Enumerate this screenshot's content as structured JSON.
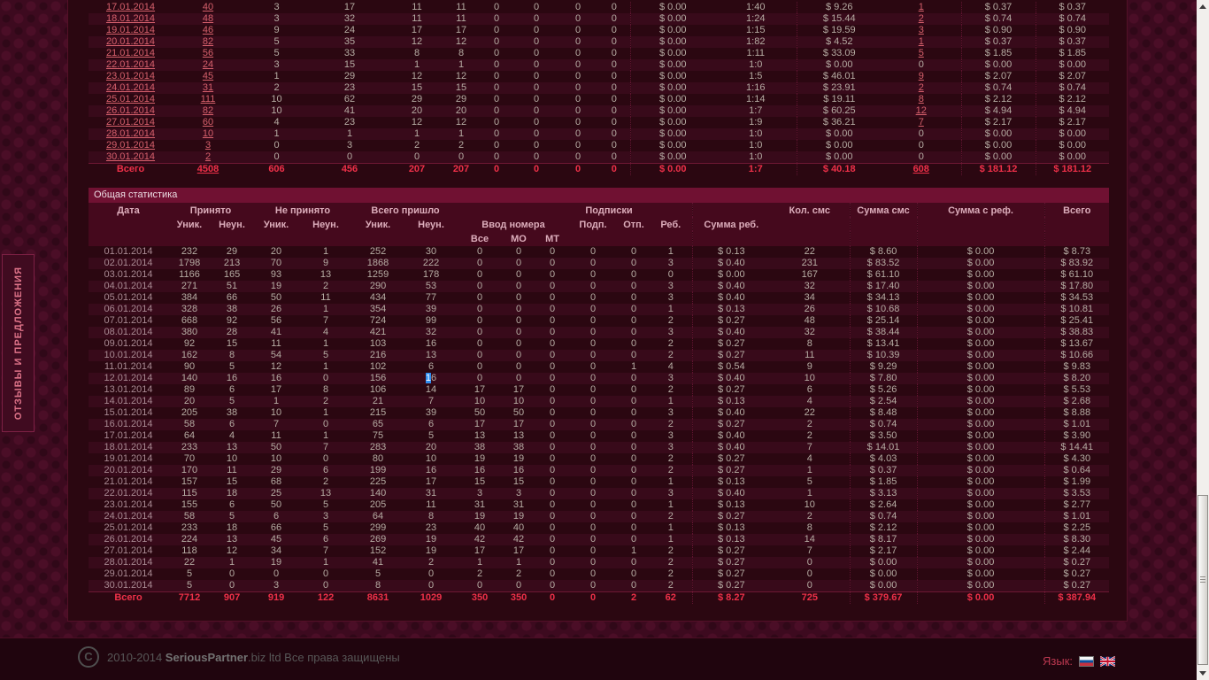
{
  "page": {
    "feedback_tab": "ОТЗЫВЫ И ПРЕДЛОЖЕНИЯ"
  },
  "colors": {
    "accent_total_red": "#ee3049",
    "link_red": "#d6606c",
    "title_bar_maroon": "#701132",
    "selection_blue": "#2e8def"
  },
  "daily_stats_table": {
    "rows": [
      [
        "17.01.2014",
        "40",
        "3",
        "17",
        "11",
        "11",
        "0",
        "0",
        "0",
        "0",
        "$ 0.00",
        "1:40",
        "$ 9.26",
        "1",
        "$ 0.37",
        "$ 0.37"
      ],
      [
        "18.01.2014",
        "48",
        "3",
        "32",
        "11",
        "11",
        "0",
        "0",
        "0",
        "0",
        "$ 0.00",
        "1:24",
        "$ 15.44",
        "2",
        "$ 0.74",
        "$ 0.74"
      ],
      [
        "19.01.2014",
        "46",
        "9",
        "24",
        "17",
        "17",
        "0",
        "0",
        "0",
        "0",
        "$ 0.00",
        "1:15",
        "$ 19.59",
        "3",
        "$ 0.90",
        "$ 0.90"
      ],
      [
        "20.01.2014",
        "82",
        "5",
        "35",
        "12",
        "12",
        "0",
        "0",
        "0",
        "0",
        "$ 0.00",
        "1:82",
        "$ 4.52",
        "1",
        "$ 0.37",
        "$ 0.37"
      ],
      [
        "21.01.2014",
        "56",
        "5",
        "33",
        "8",
        "8",
        "0",
        "0",
        "0",
        "0",
        "$ 0.00",
        "1:11",
        "$ 33.09",
        "5",
        "$ 1.85",
        "$ 1.85"
      ],
      [
        "22.01.2014",
        "24",
        "3",
        "15",
        "1",
        "1",
        "0",
        "0",
        "0",
        "0",
        "$ 0.00",
        "1:0",
        "$ 0.00",
        "0",
        "$ 0.00",
        "$ 0.00"
      ],
      [
        "23.01.2014",
        "45",
        "1",
        "29",
        "12",
        "12",
        "0",
        "0",
        "0",
        "0",
        "$ 0.00",
        "1:5",
        "$ 46.01",
        "9",
        "$ 2.07",
        "$ 2.07"
      ],
      [
        "24.01.2014",
        "31",
        "2",
        "23",
        "15",
        "15",
        "0",
        "0",
        "0",
        "0",
        "$ 0.00",
        "1:16",
        "$ 23.91",
        "2",
        "$ 0.74",
        "$ 0.74"
      ],
      [
        "25.01.2014",
        "111",
        "10",
        "62",
        "29",
        "29",
        "0",
        "0",
        "0",
        "0",
        "$ 0.00",
        "1:14",
        "$ 19.11",
        "8",
        "$ 2.12",
        "$ 2.12"
      ],
      [
        "26.01.2014",
        "82",
        "10",
        "41",
        "20",
        "20",
        "0",
        "0",
        "0",
        "0",
        "$ 0.00",
        "1:7",
        "$ 60.25",
        "12",
        "$ 4.94",
        "$ 4.94"
      ],
      [
        "27.01.2014",
        "60",
        "4",
        "23",
        "12",
        "12",
        "0",
        "0",
        "0",
        "0",
        "$ 0.00",
        "1:9",
        "$ 36.21",
        "7",
        "$ 2.17",
        "$ 2.17"
      ],
      [
        "28.01.2014",
        "10",
        "1",
        "1",
        "1",
        "1",
        "0",
        "0",
        "0",
        "0",
        "$ 0.00",
        "1:0",
        "$ 0.00",
        "0",
        "$ 0.00",
        "$ 0.00"
      ],
      [
        "29.01.2014",
        "3",
        "0",
        "3",
        "2",
        "2",
        "0",
        "0",
        "0",
        "0",
        "$ 0.00",
        "1:0",
        "$ 0.00",
        "0",
        "$ 0.00",
        "$ 0.00"
      ],
      [
        "30.01.2014",
        "2",
        "0",
        "0",
        "0",
        "0",
        "0",
        "0",
        "0",
        "0",
        "$ 0.00",
        "1:0",
        "$ 0.00",
        "0",
        "$ 0.00",
        "$ 0.00"
      ]
    ],
    "total_row": [
      "Всего",
      "4508",
      "606",
      "456",
      "207",
      "207",
      "0",
      "0",
      "0",
      "0",
      "$ 0.00",
      "1:7",
      "$ 40.18",
      "608",
      "$ 181.12",
      "$ 181.12"
    ]
  },
  "general_stats_table": {
    "title": "Общая статистика",
    "header": {
      "date": "Дата",
      "accepted": "Принято",
      "not_accepted": "Не принято",
      "total_received": "Всего пришло",
      "unique": "Уник.",
      "non_unique": "Неун.",
      "number_input": "Ввод номера",
      "all": "Все",
      "mo": "МО",
      "mt": "МТ",
      "subscriptions": "Подписки",
      "sub": "Подп.",
      "unsub": "Отп.",
      "rebill": "Реб.",
      "rebill_sum": "Сумма реб.",
      "sms_count": "Кол. смс",
      "sms_sum": "Сумма смс",
      "ref_sum": "Сумма с реф.",
      "total": "Всего"
    },
    "rows": [
      [
        "01.01.2014",
        "232",
        "29",
        "20",
        "1",
        "252",
        "30",
        "0",
        "0",
        "0",
        "0",
        "0",
        "1",
        "$ 0.13",
        "22",
        "$ 8.60",
        "$ 0.00",
        "$ 8.73"
      ],
      [
        "02.01.2014",
        "1798",
        "213",
        "70",
        "9",
        "1868",
        "222",
        "0",
        "0",
        "0",
        "0",
        "0",
        "3",
        "$ 0.40",
        "231",
        "$ 83.52",
        "$ 0.00",
        "$ 83.92"
      ],
      [
        "03.01.2014",
        "1166",
        "165",
        "93",
        "13",
        "1259",
        "178",
        "0",
        "0",
        "0",
        "0",
        "0",
        "0",
        "$ 0.00",
        "167",
        "$ 61.10",
        "$ 0.00",
        "$ 61.10"
      ],
      [
        "04.01.2014",
        "271",
        "51",
        "19",
        "2",
        "290",
        "53",
        "0",
        "0",
        "0",
        "0",
        "0",
        "3",
        "$ 0.40",
        "32",
        "$ 17.40",
        "$ 0.00",
        "$ 17.80"
      ],
      [
        "05.01.2014",
        "384",
        "66",
        "50",
        "11",
        "434",
        "77",
        "0",
        "0",
        "0",
        "0",
        "0",
        "3",
        "$ 0.40",
        "34",
        "$ 34.13",
        "$ 0.00",
        "$ 34.53"
      ],
      [
        "06.01.2014",
        "328",
        "38",
        "26",
        "1",
        "354",
        "39",
        "0",
        "0",
        "0",
        "0",
        "0",
        "1",
        "$ 0.13",
        "26",
        "$ 10.68",
        "$ 0.00",
        "$ 10.81"
      ],
      [
        "07.01.2014",
        "668",
        "92",
        "56",
        "7",
        "724",
        "99",
        "0",
        "0",
        "0",
        "0",
        "0",
        "2",
        "$ 0.27",
        "48",
        "$ 25.14",
        "$ 0.00",
        "$ 25.41"
      ],
      [
        "08.01.2014",
        "380",
        "28",
        "41",
        "4",
        "421",
        "32",
        "0",
        "0",
        "0",
        "0",
        "0",
        "3",
        "$ 0.40",
        "32",
        "$ 38.44",
        "$ 0.00",
        "$ 38.83"
      ],
      [
        "09.01.2014",
        "92",
        "15",
        "11",
        "1",
        "103",
        "16",
        "0",
        "0",
        "0",
        "0",
        "0",
        "2",
        "$ 0.27",
        "8",
        "$ 13.41",
        "$ 0.00",
        "$ 13.67"
      ],
      [
        "10.01.2014",
        "162",
        "8",
        "54",
        "5",
        "216",
        "13",
        "0",
        "0",
        "0",
        "0",
        "0",
        "2",
        "$ 0.27",
        "11",
        "$ 10.39",
        "$ 0.00",
        "$ 10.66"
      ],
      [
        "11.01.2014",
        "90",
        "5",
        "12",
        "1",
        "102",
        "6",
        "0",
        "0",
        "0",
        "0",
        "1",
        "4",
        "$ 0.54",
        "9",
        "$ 9.29",
        "$ 0.00",
        "$ 9.83"
      ],
      [
        "12.01.2014",
        "140",
        "16",
        "16",
        "0",
        "156",
        "16",
        "0",
        "0",
        "0",
        "0",
        "0",
        "3",
        "$ 0.40",
        "10",
        "$ 7.80",
        "$ 0.00",
        "$ 8.20"
      ],
      [
        "13.01.2014",
        "89",
        "6",
        "17",
        "8",
        "106",
        "14",
        "17",
        "17",
        "0",
        "0",
        "0",
        "2",
        "$ 0.27",
        "6",
        "$ 5.26",
        "$ 0.00",
        "$ 5.53"
      ],
      [
        "14.01.2014",
        "20",
        "5",
        "1",
        "2",
        "21",
        "7",
        "10",
        "10",
        "0",
        "0",
        "0",
        "1",
        "$ 0.13",
        "4",
        "$ 2.54",
        "$ 0.00",
        "$ 2.68"
      ],
      [
        "15.01.2014",
        "205",
        "38",
        "10",
        "1",
        "215",
        "39",
        "50",
        "50",
        "0",
        "0",
        "0",
        "3",
        "$ 0.40",
        "22",
        "$ 8.48",
        "$ 0.00",
        "$ 8.88"
      ],
      [
        "16.01.2014",
        "58",
        "6",
        "7",
        "0",
        "65",
        "6",
        "17",
        "17",
        "0",
        "0",
        "0",
        "2",
        "$ 0.27",
        "2",
        "$ 0.74",
        "$ 0.00",
        "$ 1.01"
      ],
      [
        "17.01.2014",
        "64",
        "4",
        "11",
        "1",
        "75",
        "5",
        "13",
        "13",
        "0",
        "0",
        "0",
        "3",
        "$ 0.40",
        "2",
        "$ 3.50",
        "$ 0.00",
        "$ 3.90"
      ],
      [
        "18.01.2014",
        "233",
        "13",
        "50",
        "7",
        "283",
        "20",
        "38",
        "38",
        "0",
        "0",
        "0",
        "3",
        "$ 0.40",
        "7",
        "$ 14.01",
        "$ 0.00",
        "$ 14.41"
      ],
      [
        "19.01.2014",
        "70",
        "10",
        "10",
        "0",
        "80",
        "10",
        "19",
        "19",
        "0",
        "0",
        "0",
        "2",
        "$ 0.27",
        "4",
        "$ 4.03",
        "$ 0.00",
        "$ 4.30"
      ],
      [
        "20.01.2014",
        "170",
        "11",
        "29",
        "6",
        "199",
        "16",
        "16",
        "16",
        "0",
        "0",
        "0",
        "2",
        "$ 0.27",
        "1",
        "$ 0.37",
        "$ 0.00",
        "$ 0.64"
      ],
      [
        "21.01.2014",
        "157",
        "15",
        "68",
        "2",
        "225",
        "17",
        "15",
        "15",
        "0",
        "0",
        "0",
        "1",
        "$ 0.13",
        "5",
        "$ 1.85",
        "$ 0.00",
        "$ 1.99"
      ],
      [
        "22.01.2014",
        "115",
        "18",
        "25",
        "13",
        "140",
        "31",
        "3",
        "3",
        "0",
        "0",
        "0",
        "3",
        "$ 0.40",
        "1",
        "$ 3.13",
        "$ 0.00",
        "$ 3.53"
      ],
      [
        "23.01.2014",
        "155",
        "6",
        "50",
        "5",
        "205",
        "11",
        "31",
        "31",
        "0",
        "0",
        "0",
        "1",
        "$ 0.13",
        "10",
        "$ 2.64",
        "$ 0.00",
        "$ 2.77"
      ],
      [
        "24.01.2014",
        "58",
        "5",
        "6",
        "3",
        "64",
        "8",
        "19",
        "19",
        "0",
        "0",
        "0",
        "2",
        "$ 0.27",
        "2",
        "$ 0.74",
        "$ 0.00",
        "$ 1.01"
      ],
      [
        "25.01.2014",
        "233",
        "18",
        "66",
        "5",
        "299",
        "23",
        "40",
        "40",
        "0",
        "0",
        "0",
        "1",
        "$ 0.13",
        "8",
        "$ 2.12",
        "$ 0.00",
        "$ 2.25"
      ],
      [
        "26.01.2014",
        "224",
        "13",
        "45",
        "6",
        "269",
        "19",
        "42",
        "42",
        "0",
        "0",
        "0",
        "1",
        "$ 0.13",
        "14",
        "$ 8.17",
        "$ 0.00",
        "$ 8.30"
      ],
      [
        "27.01.2014",
        "118",
        "12",
        "34",
        "7",
        "152",
        "19",
        "17",
        "17",
        "0",
        "0",
        "1",
        "2",
        "$ 0.27",
        "7",
        "$ 2.17",
        "$ 0.00",
        "$ 2.44"
      ],
      [
        "28.01.2014",
        "22",
        "1",
        "19",
        "1",
        "41",
        "2",
        "1",
        "1",
        "0",
        "0",
        "0",
        "2",
        "$ 0.27",
        "0",
        "$ 0.00",
        "$ 0.00",
        "$ 0.27"
      ],
      [
        "29.01.2014",
        "5",
        "0",
        "0",
        "0",
        "5",
        "0",
        "2",
        "2",
        "0",
        "0",
        "0",
        "2",
        "$ 0.27",
        "0",
        "$ 0.00",
        "$ 0.00",
        "$ 0.27"
      ],
      [
        "30.01.2014",
        "5",
        "0",
        "3",
        "0",
        "8",
        "0",
        "0",
        "0",
        "0",
        "0",
        "0",
        "2",
        "$ 0.27",
        "0",
        "$ 0.00",
        "$ 0.00",
        "$ 0.27"
      ]
    ],
    "total_row": [
      "Всего",
      "7712",
      "907",
      "919",
      "122",
      "8631",
      "1029",
      "350",
      "350",
      "0",
      "0",
      "2",
      "62",
      "$ 8.27",
      "725",
      "$ 379.67",
      "$ 0.00",
      "$ 387.94"
    ],
    "selection": {
      "row": 11,
      "col": 6,
      "selected_text": "1"
    }
  },
  "footer": {
    "copyright_symbol": "C",
    "years": "2010-2014",
    "brand": "SeriousPartner",
    "brand_suffix": ".biz ltd Все права защищены",
    "language_label": "Язык:",
    "languages": [
      "russian-flag",
      "british-flag"
    ]
  }
}
